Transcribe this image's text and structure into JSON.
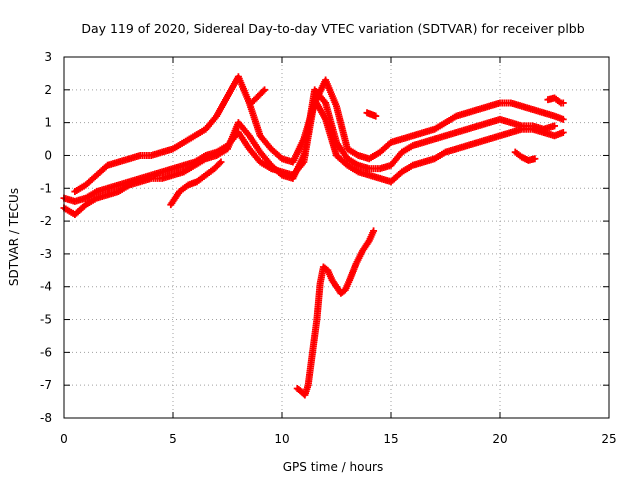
{
  "chart_data": {
    "type": "scatter",
    "title": "Day 119 of 2020, Sidereal Day-to-day VTEC variation (SDTVAR) for receiver plbb",
    "xlabel": "GPS time / hours",
    "ylabel": "SDTVAR / TECUs",
    "xlim": [
      0,
      25
    ],
    "ylim": [
      -8,
      3
    ],
    "xticks": [
      "0",
      "5",
      "10",
      "15",
      "20",
      "25"
    ],
    "yticks": [
      "3",
      "2",
      "1",
      "0",
      "-1",
      "-2",
      "-3",
      "-4",
      "-5",
      "-6",
      "-7",
      "-8"
    ],
    "grid": true,
    "marker": "plus",
    "color": "#ff0000",
    "series": [
      {
        "name": "band-lower-a",
        "x": [
          0,
          0.5,
          1,
          1.5,
          2,
          2.5,
          3,
          3.5,
          4,
          4.5,
          5,
          5.5,
          6,
          6.5,
          7,
          7.5,
          8,
          8.5,
          9,
          9.5,
          10,
          10.5,
          11,
          11.5,
          12,
          12.5,
          13,
          13.5,
          14,
          14.5,
          15,
          15.5,
          16,
          16.5,
          17,
          17.5,
          18,
          18.5,
          19,
          19.5,
          20,
          20.5,
          21,
          21.5,
          22,
          22.5,
          22.9
        ],
        "y": [
          -1.3,
          -1.4,
          -1.3,
          -1.1,
          -1.0,
          -0.9,
          -0.8,
          -0.7,
          -0.6,
          -0.5,
          -0.4,
          -0.3,
          -0.2,
          0.0,
          0.1,
          0.3,
          0.7,
          0.2,
          -0.2,
          -0.4,
          -0.5,
          -0.6,
          -0.2,
          1.7,
          1.1,
          0.0,
          -0.3,
          -0.5,
          -0.6,
          -0.7,
          -0.8,
          -0.5,
          -0.3,
          -0.2,
          -0.1,
          0.1,
          0.2,
          0.3,
          0.4,
          0.5,
          0.6,
          0.7,
          0.8,
          0.8,
          0.7,
          0.6,
          0.7
        ]
      },
      {
        "name": "band-lower-b",
        "x": [
          0,
          0.5,
          1,
          1.5,
          2,
          2.5,
          3,
          3.5,
          4,
          4.5,
          5,
          5.5,
          6,
          6.5,
          7,
          7.5,
          8,
          8.5,
          9,
          9.5,
          10,
          10.5,
          11,
          11.5,
          12,
          12.5,
          13,
          13.5,
          14,
          14.5,
          15,
          15.5,
          16,
          16.5,
          17,
          17.5,
          18,
          18.5,
          19,
          19.5,
          20,
          20.5,
          21,
          21.5,
          22,
          22.5
        ],
        "y": [
          -1.6,
          -1.8,
          -1.5,
          -1.3,
          -1.2,
          -1.1,
          -0.9,
          -0.8,
          -0.7,
          -0.7,
          -0.6,
          -0.5,
          -0.3,
          -0.1,
          0.0,
          0.2,
          1.0,
          0.6,
          0.1,
          -0.3,
          -0.6,
          -0.7,
          0.0,
          2.0,
          1.6,
          0.4,
          -0.1,
          -0.3,
          -0.4,
          -0.4,
          -0.3,
          0.1,
          0.3,
          0.4,
          0.5,
          0.6,
          0.7,
          0.8,
          0.9,
          1.0,
          1.1,
          1.0,
          0.9,
          0.9,
          0.8,
          0.9
        ]
      },
      {
        "name": "band-upper",
        "x": [
          0.5,
          1,
          1.5,
          2,
          2.5,
          3,
          3.5,
          4,
          4.5,
          5,
          5.5,
          6,
          6.5,
          7,
          7.5,
          8,
          8.5,
          9,
          9.5,
          10,
          10.5,
          11,
          11.5,
          12,
          12.5,
          13,
          13.5,
          14,
          14.5,
          15,
          15.5,
          16,
          16.5,
          17,
          17.5,
          18,
          18.5,
          19,
          19.5,
          20,
          20.5,
          21,
          21.5,
          22,
          22.5,
          22.9
        ],
        "y": [
          -1.1,
          -0.9,
          -0.6,
          -0.3,
          -0.2,
          -0.1,
          0.0,
          0.0,
          0.1,
          0.2,
          0.4,
          0.6,
          0.8,
          1.2,
          1.8,
          2.4,
          1.6,
          0.6,
          0.2,
          -0.1,
          -0.2,
          0.5,
          1.6,
          2.3,
          1.5,
          0.2,
          0.0,
          -0.1,
          0.1,
          0.4,
          0.5,
          0.6,
          0.7,
          0.8,
          1.0,
          1.2,
          1.3,
          1.4,
          1.5,
          1.6,
          1.6,
          1.5,
          1.4,
          1.3,
          1.2,
          1.1
        ]
      },
      {
        "name": "arc-isolated-a",
        "x": [
          4.9,
          5.3,
          5.7,
          6.1,
          6.5,
          6.9,
          7.2
        ],
        "y": [
          -1.5,
          -1.1,
          -0.9,
          -0.8,
          -0.6,
          -0.4,
          -0.2
        ]
      },
      {
        "name": "arc-isolated-b",
        "x": [
          8.6,
          8.9,
          9.2
        ],
        "y": [
          1.6,
          1.8,
          2.0
        ]
      },
      {
        "name": "arc-isolated-c",
        "x": [
          13.9,
          14.1,
          14.3
        ],
        "y": [
          1.3,
          1.25,
          1.2
        ]
      },
      {
        "name": "arc-isolated-d",
        "x": [
          20.7,
          21.0,
          21.3,
          21.6
        ],
        "y": [
          0.1,
          -0.05,
          -0.15,
          -0.1
        ]
      },
      {
        "name": "arc-isolated-e",
        "x": [
          22.2,
          22.5,
          22.8,
          22.9
        ],
        "y": [
          1.7,
          1.75,
          1.6,
          1.6
        ]
      },
      {
        "name": "arc-low-dip",
        "x": [
          10.7,
          10.9,
          11.05,
          11.2,
          11.4,
          11.6,
          11.75,
          11.9,
          12.1,
          12.3,
          12.5,
          12.7,
          12.9,
          13.1,
          13.4,
          13.7,
          14.0,
          14.2
        ],
        "y": [
          -7.1,
          -7.2,
          -7.3,
          -7.0,
          -6.0,
          -5.0,
          -3.9,
          -3.4,
          -3.5,
          -3.8,
          -4.0,
          -4.2,
          -4.1,
          -3.8,
          -3.3,
          -2.9,
          -2.6,
          -2.3
        ]
      }
    ]
  }
}
